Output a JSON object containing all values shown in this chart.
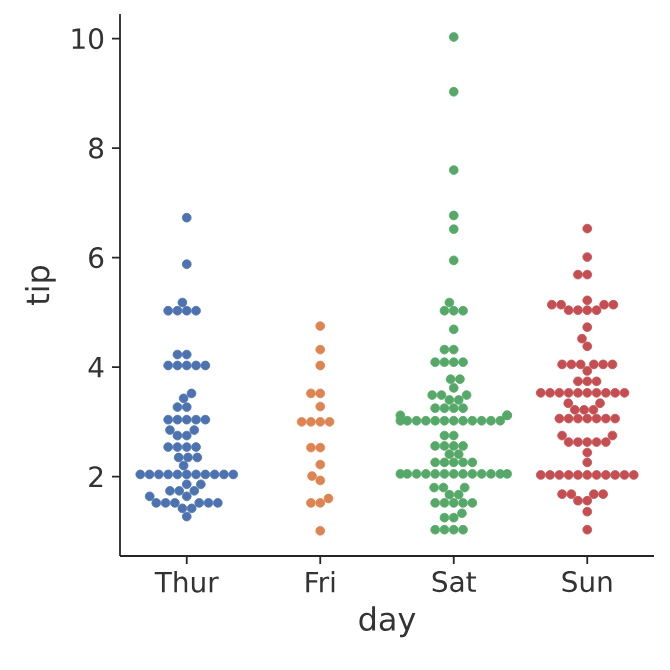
{
  "chart_data": {
    "type": "scatter",
    "xlabel": "day",
    "ylabel": "tip",
    "categories": [
      "Thur",
      "Fri",
      "Sat",
      "Sun"
    ],
    "ylim": [
      0.55,
      10.45
    ],
    "yticks": [
      2,
      4,
      6,
      8,
      10
    ],
    "series": [
      {
        "color": "#4c72b0",
        "x": [
          "Thur",
          "Thur",
          "Thur",
          "Thur",
          "Thur",
          "Thur",
          "Thur",
          "Thur",
          "Thur",
          "Thur",
          "Thur",
          "Thur",
          "Thur",
          "Thur",
          "Thur",
          "Thur",
          "Thur",
          "Thur",
          "Thur",
          "Thur",
          "Thur",
          "Thur",
          "Thur",
          "Thur",
          "Thur",
          "Thur",
          "Thur",
          "Thur",
          "Thur",
          "Thur",
          "Thur",
          "Thur",
          "Thur",
          "Thur",
          "Thur",
          "Thur",
          "Thur",
          "Thur",
          "Thur",
          "Thur",
          "Thur",
          "Thur",
          "Thur",
          "Thur",
          "Thur",
          "Thur",
          "Thur",
          "Thur",
          "Thur",
          "Thur",
          "Thur",
          "Thur",
          "Thur",
          "Thur",
          "Thur",
          "Thur",
          "Thur",
          "Thur",
          "Thur",
          "Thur",
          "Thur",
          "Thur"
        ],
        "values": [
          6.73,
          5.88,
          5.18,
          5.03,
          5.03,
          5.03,
          5.03,
          4.23,
          4.23,
          4.03,
          4.03,
          4.03,
          4.03,
          4.03,
          3.52,
          3.43,
          3.27,
          3.27,
          3.04,
          3.04,
          3.04,
          3.04,
          3.04,
          2.85,
          2.85,
          2.75,
          2.75,
          2.54,
          2.54,
          2.54,
          2.54,
          2.35,
          2.35,
          2.35,
          2.2,
          2.04,
          2.04,
          2.04,
          2.04,
          2.04,
          2.04,
          2.04,
          2.04,
          2.04,
          2.04,
          2.04,
          1.86,
          1.86,
          1.74,
          1.74,
          1.74,
          1.64,
          1.64,
          1.52,
          1.52,
          1.52,
          1.52,
          1.52,
          1.52,
          1.42,
          1.42,
          1.27
        ]
      },
      {
        "color": "#dd8452",
        "x": [
          "Fri",
          "Fri",
          "Fri",
          "Fri",
          "Fri",
          "Fri",
          "Fri",
          "Fri",
          "Fri",
          "Fri",
          "Fri",
          "Fri",
          "Fri",
          "Fri",
          "Fri",
          "Fri",
          "Fri",
          "Fri",
          "Fri"
        ],
        "values": [
          4.75,
          4.32,
          4.03,
          3.52,
          3.52,
          3.28,
          3.0,
          3.0,
          3.0,
          3.0,
          2.53,
          2.53,
          2.22,
          2.01,
          1.93,
          1.6,
          1.52,
          1.52,
          1.01
        ]
      },
      {
        "color": "#55a868",
        "x": [
          "Sat",
          "Sat",
          "Sat",
          "Sat",
          "Sat",
          "Sat",
          "Sat",
          "Sat",
          "Sat",
          "Sat",
          "Sat",
          "Sat",
          "Sat",
          "Sat",
          "Sat",
          "Sat",
          "Sat",
          "Sat",
          "Sat",
          "Sat",
          "Sat",
          "Sat",
          "Sat",
          "Sat",
          "Sat",
          "Sat",
          "Sat",
          "Sat",
          "Sat",
          "Sat",
          "Sat",
          "Sat",
          "Sat",
          "Sat",
          "Sat",
          "Sat",
          "Sat",
          "Sat",
          "Sat",
          "Sat",
          "Sat",
          "Sat",
          "Sat",
          "Sat",
          "Sat",
          "Sat",
          "Sat",
          "Sat",
          "Sat",
          "Sat",
          "Sat",
          "Sat",
          "Sat",
          "Sat",
          "Sat",
          "Sat",
          "Sat",
          "Sat",
          "Sat",
          "Sat",
          "Sat",
          "Sat",
          "Sat",
          "Sat",
          "Sat",
          "Sat",
          "Sat",
          "Sat",
          "Sat",
          "Sat",
          "Sat",
          "Sat",
          "Sat",
          "Sat",
          "Sat",
          "Sat",
          "Sat",
          "Sat",
          "Sat",
          "Sat",
          "Sat",
          "Sat",
          "Sat",
          "Sat",
          "Sat",
          "Sat",
          "Sat"
        ],
        "values": [
          10.03,
          9.03,
          7.6,
          6.77,
          6.52,
          5.95,
          5.18,
          5.03,
          5.03,
          5.03,
          4.69,
          4.32,
          4.32,
          4.09,
          4.09,
          4.09,
          4.09,
          3.78,
          3.78,
          3.62,
          3.49,
          3.49,
          3.49,
          3.4,
          3.4,
          3.25,
          3.25,
          3.25,
          3.25,
          3.12,
          3.12,
          3.12,
          3.02,
          3.02,
          3.02,
          3.02,
          3.02,
          3.02,
          3.02,
          3.02,
          3.02,
          3.02,
          3.02,
          3.02,
          2.75,
          2.75,
          2.56,
          2.56,
          2.56,
          2.56,
          2.41,
          2.41,
          2.26,
          2.26,
          2.26,
          2.26,
          2.26,
          2.05,
          2.05,
          2.05,
          2.05,
          2.05,
          2.05,
          2.05,
          2.05,
          2.05,
          2.05,
          2.05,
          2.05,
          2.05,
          1.8,
          1.8,
          1.8,
          1.67,
          1.67,
          1.52,
          1.52,
          1.52,
          1.52,
          1.52,
          1.33,
          1.25,
          1.25,
          1.03,
          1.03,
          1.03,
          1.03
        ]
      },
      {
        "color": "#c44e52",
        "x": [
          "Sun",
          "Sun",
          "Sun",
          "Sun",
          "Sun",
          "Sun",
          "Sun",
          "Sun",
          "Sun",
          "Sun",
          "Sun",
          "Sun",
          "Sun",
          "Sun",
          "Sun",
          "Sun",
          "Sun",
          "Sun",
          "Sun",
          "Sun",
          "Sun",
          "Sun",
          "Sun",
          "Sun",
          "Sun",
          "Sun",
          "Sun",
          "Sun",
          "Sun",
          "Sun",
          "Sun",
          "Sun",
          "Sun",
          "Sun",
          "Sun",
          "Sun",
          "Sun",
          "Sun",
          "Sun",
          "Sun",
          "Sun",
          "Sun",
          "Sun",
          "Sun",
          "Sun",
          "Sun",
          "Sun",
          "Sun",
          "Sun",
          "Sun",
          "Sun",
          "Sun",
          "Sun",
          "Sun",
          "Sun",
          "Sun",
          "Sun",
          "Sun",
          "Sun",
          "Sun",
          "Sun",
          "Sun",
          "Sun",
          "Sun",
          "Sun",
          "Sun",
          "Sun",
          "Sun",
          "Sun",
          "Sun",
          "Sun",
          "Sun",
          "Sun",
          "Sun",
          "Sun",
          "Sun"
        ],
        "values": [
          6.53,
          6.01,
          5.69,
          5.69,
          5.22,
          5.14,
          5.14,
          5.14,
          5.14,
          5.04,
          5.04,
          5.04,
          5.04,
          4.73,
          4.52,
          4.38,
          4.05,
          4.05,
          4.05,
          4.05,
          4.05,
          4.05,
          3.93,
          3.74,
          3.74,
          3.74,
          3.53,
          3.53,
          3.53,
          3.53,
          3.53,
          3.53,
          3.53,
          3.53,
          3.53,
          3.53,
          3.34,
          3.34,
          3.22,
          3.22,
          3.22,
          3.06,
          3.06,
          3.06,
          3.06,
          3.06,
          3.06,
          3.06,
          2.75,
          2.75,
          2.63,
          2.63,
          2.63,
          2.63,
          2.63,
          2.44,
          2.26,
          2.03,
          2.03,
          2.03,
          2.03,
          2.03,
          2.03,
          2.03,
          2.03,
          2.03,
          2.03,
          2.03,
          1.68,
          1.68,
          1.68,
          1.68,
          1.56,
          1.56,
          1.36,
          1.03
        ]
      }
    ]
  }
}
